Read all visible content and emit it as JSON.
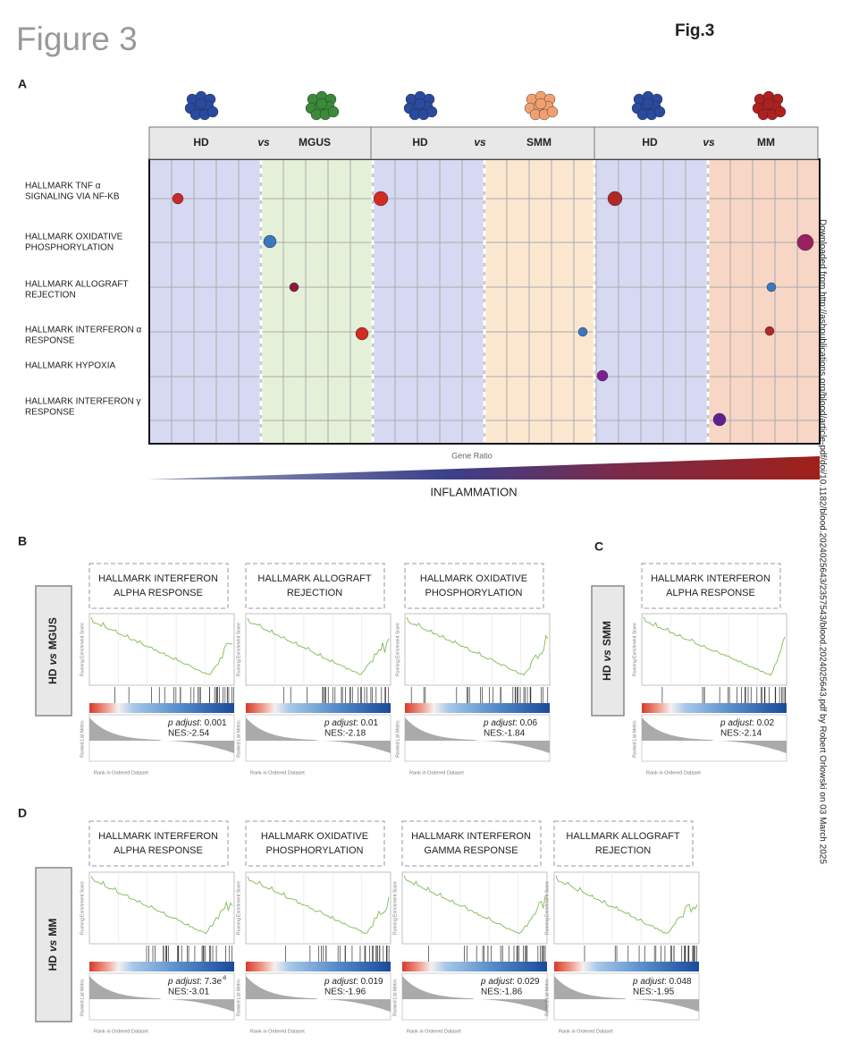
{
  "header": {
    "title": "Figure 3",
    "fig_label": "Fig.3"
  },
  "watermark": "Downloaded from http://ashpublications.org/blood/article-pdf/doi/10.1182/blood.2024025643/2357543/blood.2024025643.pdf by Robert Orlowski on 03 March 2025",
  "panel_a": {
    "label": "A",
    "comparisons": [
      {
        "left": "HD",
        "vs": "vs",
        "right": "MGUS"
      },
      {
        "left": "HD",
        "vs": "vs",
        "right": "SMM"
      },
      {
        "left": "HD",
        "vs": "vs",
        "right": "MM"
      }
    ],
    "pathways": [
      [
        "HALLMARK TNF α",
        "SIGNALING VIA NF-KB"
      ],
      [
        "HALLMARK OXIDATIVE",
        "PHOSPHORYLATION"
      ],
      [
        "HALLMARK ALLOGRAFT",
        "REJECTION"
      ],
      [
        "HALLMARK INTERFERON α",
        "RESPONSE"
      ],
      [
        "HALLMARK HYPOXIA"
      ],
      [
        "HALLMARK INTERFERON γ",
        "RESPONSE"
      ]
    ],
    "x_label": "Gene Ratio",
    "gradient_label": "INFLAMMATION"
  },
  "axis_labels": {
    "y_top": "Running Enrichment Score",
    "y_bottom": "Ranked List Metric",
    "x": "Rank in Ordered Dataset"
  },
  "panels": [
    {
      "label": "B",
      "row": {
        "left": "HD",
        "vs": "vs",
        "right": "MGUS"
      },
      "plots": [
        {
          "title": [
            "HALLMARK INTERFERON",
            "ALPHA RESPONSE"
          ],
          "p_label": "p adjust",
          "p_value": ": 0.001",
          "nes": "NES:-2.54"
        },
        {
          "title": [
            "HALLMARK ALLOGRAFT",
            "REJECTION"
          ],
          "p_label": "p adjust",
          "p_value": ": 0.01",
          "nes": "NES:-2.18"
        },
        {
          "title": [
            "HALLMARK OXIDATIVE",
            "PHOSPHORYLATION"
          ],
          "p_label": "p adjust",
          "p_value": ": 0.06",
          "nes": "NES:-1.84"
        }
      ]
    },
    {
      "label": "C",
      "row": {
        "left": "HD",
        "vs": "vs",
        "right": "SMM"
      },
      "plots": [
        {
          "title": [
            "HALLMARK INTERFERON",
            "ALPHA RESPONSE"
          ],
          "p_label": "p adjust",
          "p_value": ": 0.02",
          "nes": "NES:-2.14"
        }
      ]
    },
    {
      "label": "D",
      "row": {
        "left": "HD",
        "vs": "vs",
        "right": "MM"
      },
      "plots": [
        {
          "title": [
            "HALLMARK INTERFERON",
            "ALPHA RESPONSE"
          ],
          "p_label": "p adjust",
          "p_value": ": 7.3e",
          "p_exp": "-6",
          "nes": "NES:-3.01"
        },
        {
          "title": [
            "HALLMARK OXIDATIVE",
            "PHOSPHORYLATION"
          ],
          "p_label": "p adjust",
          "p_value": ": 0.019",
          "nes": "NES:-1.96"
        },
        {
          "title": [
            "HALLMARK INTERFERON",
            "GAMMA RESPONSE"
          ],
          "p_label": "p adjust",
          "p_value": ": 0.029",
          "nes": "NES:-1.86"
        },
        {
          "title": [
            "HALLMARK ALLOGRAFT",
            "REJECTION"
          ],
          "p_label": "p adjust",
          "p_value": ": 0.048",
          "nes": "NES:-1.95"
        }
      ]
    }
  ]
}
